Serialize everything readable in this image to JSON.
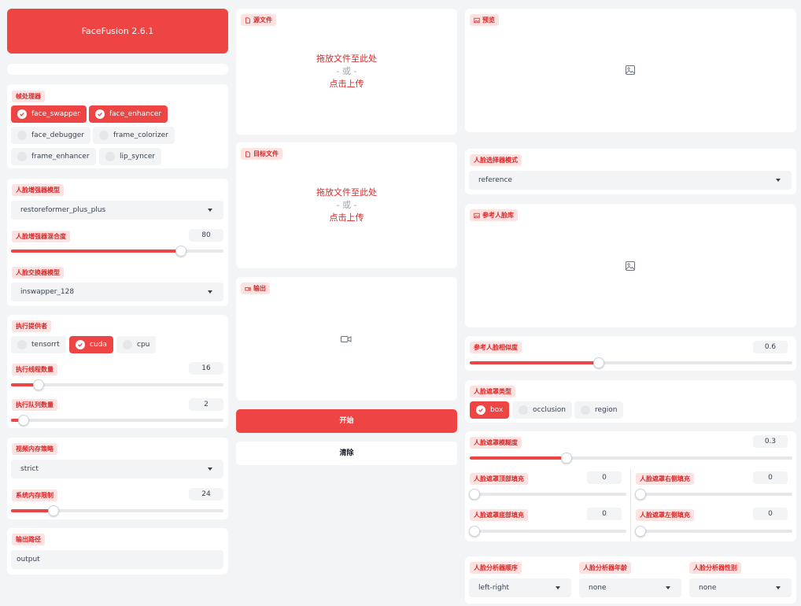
{
  "app": {
    "title": "FaceFusion 2.6.1"
  },
  "processors": {
    "label": "帧处理器",
    "items": [
      {
        "name": "face_swapper",
        "checked": true
      },
      {
        "name": "face_enhancer",
        "checked": true
      },
      {
        "name": "face_debugger",
        "checked": false
      },
      {
        "name": "frame_colorizer",
        "checked": false
      },
      {
        "name": "frame_enhancer",
        "checked": false
      },
      {
        "name": "lip_syncer",
        "checked": false
      }
    ]
  },
  "face_enhancer": {
    "model_label": "人脸增强器模型",
    "model_value": "restoreformer_plus_plus",
    "blend_label": "人脸增强器混合度",
    "blend_value": "80",
    "blend_fraction": 0.8
  },
  "face_swapper": {
    "model_label": "人脸交换器模型",
    "model_value": "inswapper_128"
  },
  "execution": {
    "providers_label": "执行提供者",
    "providers": [
      {
        "name": "tensorrt",
        "checked": false
      },
      {
        "name": "cuda",
        "checked": true
      },
      {
        "name": "cpu",
        "checked": false
      }
    ],
    "threads_label": "执行线程数量",
    "threads_value": "16",
    "threads_fraction": 0.13,
    "queue_label": "执行队列数量",
    "queue_value": "2",
    "queue_fraction": 0.06
  },
  "memory": {
    "strategy_label": "视频内存策略",
    "strategy_value": "strict",
    "limit_label": "系统内存限制",
    "limit_value": "24",
    "limit_fraction": 0.2
  },
  "output_path": {
    "label": "输出路径",
    "value": "output"
  },
  "source": {
    "label": "源文件",
    "drop": "拖放文件至此处",
    "or": "- 或 -",
    "click": "点击上传"
  },
  "target": {
    "label": "目标文件",
    "drop": "拖放文件至此处",
    "or": "- 或 -",
    "click": "点击上传"
  },
  "output": {
    "label": "输出"
  },
  "actions": {
    "start": "开始",
    "clear": "清除"
  },
  "preview": {
    "label": "预览"
  },
  "face_selector": {
    "mode_label": "人脸选择器模式",
    "mode_value": "reference"
  },
  "reference_gallery": {
    "label": "参考人脸库"
  },
  "reference_distance": {
    "label": "参考人脸相似度",
    "value": "0.6",
    "fraction": 0.4
  },
  "face_mask": {
    "types_label": "人脸遮罩类型",
    "types": [
      {
        "name": "box",
        "checked": true
      },
      {
        "name": "occlusion",
        "checked": false
      },
      {
        "name": "region",
        "checked": false
      }
    ],
    "blur_label": "人脸遮罩模糊度",
    "blur_value": "0.3",
    "blur_fraction": 0.3,
    "pad_top_label": "人脸遮罩顶部填充",
    "pad_top_value": "0",
    "pad_right_label": "人脸遮罩右侧填充",
    "pad_right_value": "0",
    "pad_bottom_label": "人脸遮罩底部填充",
    "pad_bottom_value": "0",
    "pad_left_label": "人脸遮罩左侧填充",
    "pad_left_value": "0"
  },
  "face_analyser": {
    "order_label": "人脸分析器顺序",
    "order_value": "left-right",
    "age_label": "人脸分析器年龄",
    "age_value": "none",
    "gender_label": "人脸分析器性别",
    "gender_value": "none"
  },
  "colors": {
    "accent": "#ef4444",
    "tag_bg": "#fde2e2",
    "tag_text": "#dc2626",
    "bg": "#f3f4f6"
  }
}
